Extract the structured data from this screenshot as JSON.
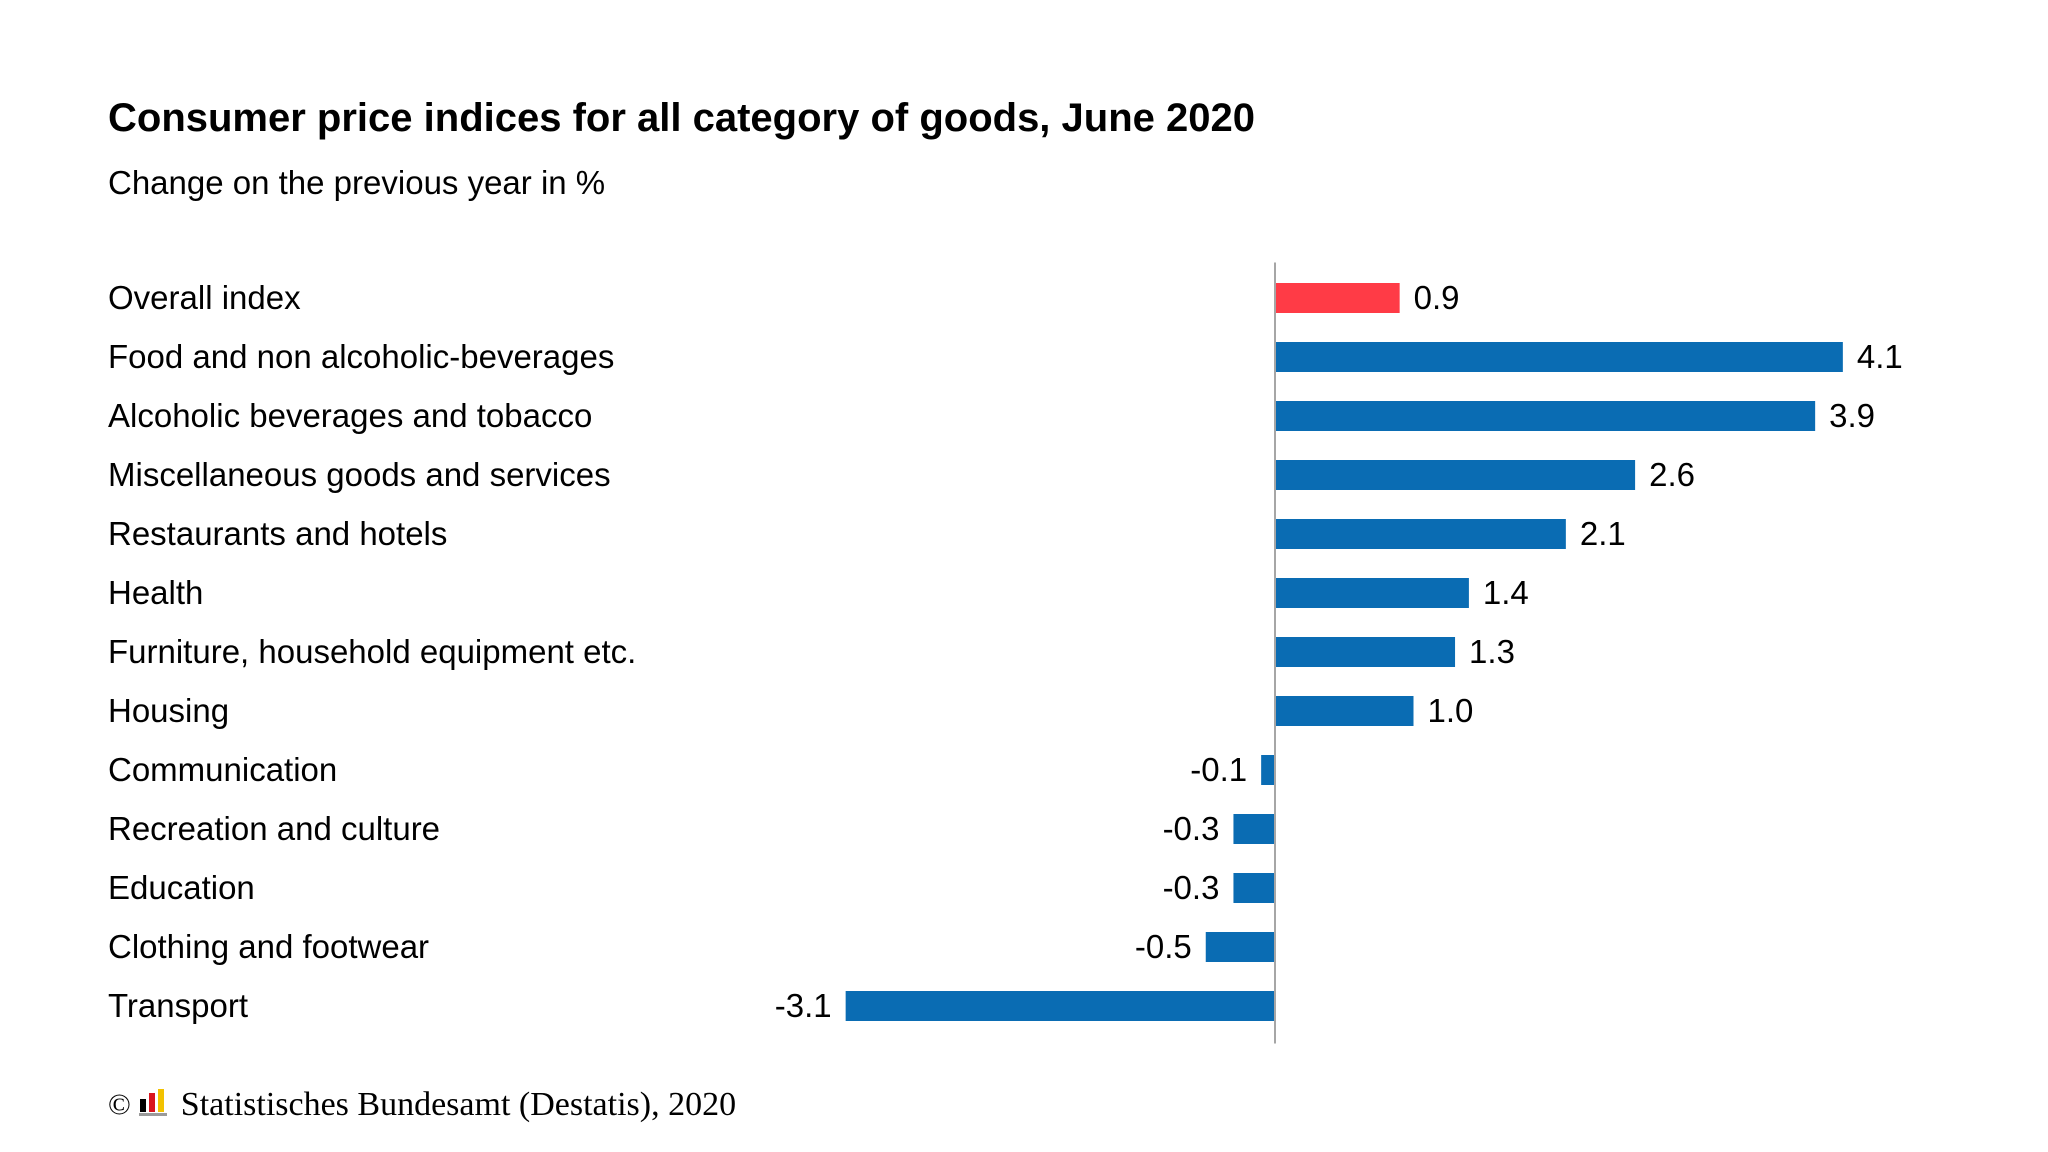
{
  "chart_data": {
    "type": "bar",
    "orientation": "horizontal",
    "title": "Consumer price indices for all category of goods, June 2020",
    "subtitle": "Change on the previous year in %",
    "categories": [
      "Overall index",
      "Food and non alcoholic-beverages",
      "Alcoholic beverages and tobacco",
      "Miscellaneous goods and services",
      "Restaurants and hotels",
      "Health",
      "Furniture, household equipment etc.",
      "Housing",
      "Communication",
      "Recreation and culture",
      "Education",
      "Clothing and footwear",
      "Transport"
    ],
    "values": [
      0.9,
      4.1,
      3.9,
      2.6,
      2.1,
      1.4,
      1.3,
      1.0,
      -0.1,
      -0.3,
      -0.3,
      -0.5,
      -3.1
    ],
    "value_labels": [
      "0.9",
      "4.1",
      "3.9",
      "2.6",
      "2.1",
      "1.4",
      "1.3",
      "1.0",
      "-0.1",
      "-0.3",
      "-0.3",
      "-0.5",
      "-3.1"
    ],
    "colors": {
      "highlight": "#ff3b46",
      "default": "#0a6cb3",
      "axis": "#a6a6a6"
    },
    "highlight_index": 0,
    "xlim": [
      -3.1,
      4.1
    ],
    "grid": false,
    "legend": "none"
  },
  "footer": {
    "copyright_symbol": "©",
    "source": "Statistisches Bundesamt (Destatis), 2020",
    "logo_icon": "destatis-logo-icon"
  }
}
